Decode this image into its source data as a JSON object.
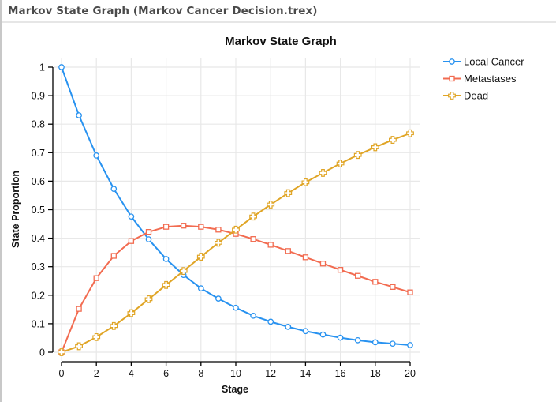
{
  "window": {
    "title": "Markov State Graph (Markov Cancer Decision.trex)"
  },
  "chart_data": {
    "type": "line",
    "title": "Markov State Graph",
    "xlabel": "Stage",
    "ylabel": "State Proportion",
    "xlim": [
      0,
      20
    ],
    "ylim": [
      0,
      1
    ],
    "x_ticks": [
      0,
      2,
      4,
      6,
      8,
      10,
      12,
      14,
      16,
      18,
      20
    ],
    "y_ticks": [
      0,
      0.1,
      0.2,
      0.3,
      0.4,
      0.5,
      0.6,
      0.7,
      0.8,
      0.9,
      1
    ],
    "y_tick_labels": [
      "0",
      "0.1",
      "0.2",
      "0.3",
      "0.4",
      "0.5",
      "0.6",
      "0.7",
      "0.8",
      "0.9",
      "1"
    ],
    "grid": true,
    "legend_position": "right-top",
    "x": [
      0,
      1,
      2,
      3,
      4,
      5,
      6,
      7,
      8,
      9,
      10,
      11,
      12,
      13,
      14,
      15,
      16,
      17,
      18,
      19,
      20
    ],
    "series": [
      {
        "name": "Local Cancer",
        "color": "#2892F0",
        "marker": "circle",
        "values": [
          1.0,
          0.831,
          0.69,
          0.573,
          0.476,
          0.396,
          0.327,
          0.271,
          0.224,
          0.188,
          0.156,
          0.128,
          0.107,
          0.089,
          0.074,
          0.062,
          0.051,
          0.042,
          0.035,
          0.03,
          0.025
        ]
      },
      {
        "name": "Metastases",
        "color": "#F26B50",
        "marker": "square",
        "values": [
          0.0,
          0.152,
          0.26,
          0.338,
          0.39,
          0.422,
          0.44,
          0.444,
          0.44,
          0.43,
          0.415,
          0.397,
          0.377,
          0.355,
          0.333,
          0.311,
          0.289,
          0.268,
          0.247,
          0.229,
          0.21
        ]
      },
      {
        "name": "Dead",
        "color": "#E0A526",
        "marker": "plus",
        "values": [
          0.0,
          0.021,
          0.053,
          0.092,
          0.137,
          0.186,
          0.236,
          0.285,
          0.335,
          0.384,
          0.43,
          0.476,
          0.518,
          0.558,
          0.596,
          0.629,
          0.662,
          0.692,
          0.719,
          0.745,
          0.768
        ]
      }
    ]
  }
}
